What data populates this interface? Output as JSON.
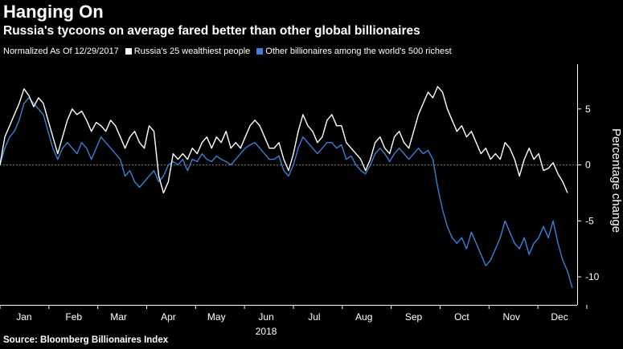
{
  "header": {
    "title": "Hanging On",
    "subtitle": "Russia's tycoons on average fared better than other global billionaires"
  },
  "legend": {
    "note": "Normalized As Of 12/29/2017",
    "items": [
      {
        "label": "Russia's 25 wealthiest people",
        "color": "#ffffff"
      },
      {
        "label": "Other billionaires among the world's 500 richest",
        "color": "#3a7fd9"
      }
    ]
  },
  "footer": {
    "source": "Source: Bloomberg Billionaires Index"
  },
  "chart_data": {
    "type": "line",
    "xlabel": "2018",
    "ylabel": "Percentage change",
    "ylim": [
      -12.5,
      9
    ],
    "yticks": [
      5,
      0,
      -5,
      -10
    ],
    "xlim": [
      0,
      360
    ],
    "month_ticks": [
      {
        "label": "Jan",
        "x": 15
      },
      {
        "label": "Feb",
        "x": 46
      },
      {
        "label": "Mar",
        "x": 74
      },
      {
        "label": "Apr",
        "x": 105
      },
      {
        "label": "May",
        "x": 135
      },
      {
        "label": "Jun",
        "x": 166
      },
      {
        "label": "Jul",
        "x": 196
      },
      {
        "label": "Aug",
        "x": 227
      },
      {
        "label": "Sep",
        "x": 258
      },
      {
        "label": "Oct",
        "x": 288
      },
      {
        "label": "Nov",
        "x": 319
      },
      {
        "label": "Dec",
        "x": 349
      }
    ],
    "grid": false,
    "zero_line": true,
    "series": [
      {
        "name": "Russia's 25 wealthiest people",
        "color": "#ffffff",
        "points": [
          [
            0,
            0
          ],
          [
            3,
            2.5
          ],
          [
            6,
            3.5
          ],
          [
            9,
            4.5
          ],
          [
            12,
            5.5
          ],
          [
            15,
            6.8
          ],
          [
            18,
            6.2
          ],
          [
            21,
            5.2
          ],
          [
            24,
            6.0
          ],
          [
            27,
            5.5
          ],
          [
            30,
            4.0
          ],
          [
            33,
            2.5
          ],
          [
            36,
            1.0
          ],
          [
            39,
            2.5
          ],
          [
            42,
            4.0
          ],
          [
            45,
            5.0
          ],
          [
            48,
            4.5
          ],
          [
            51,
            4.8
          ],
          [
            54,
            4.0
          ],
          [
            57,
            3.0
          ],
          [
            60,
            3.8
          ],
          [
            63,
            3.5
          ],
          [
            66,
            3.0
          ],
          [
            69,
            4.0
          ],
          [
            72,
            3.5
          ],
          [
            75,
            2.5
          ],
          [
            78,
            1.5
          ],
          [
            81,
            2.5
          ],
          [
            84,
            3.0
          ],
          [
            87,
            2.0
          ],
          [
            90,
            1.5
          ],
          [
            93,
            3.5
          ],
          [
            96,
            3.0
          ],
          [
            99,
            -1.0
          ],
          [
            102,
            -2.5
          ],
          [
            105,
            -1.5
          ],
          [
            108,
            1.0
          ],
          [
            111,
            0.5
          ],
          [
            114,
            1.0
          ],
          [
            117,
            0.5
          ],
          [
            120,
            1.5
          ],
          [
            123,
            1.0
          ],
          [
            126,
            2.0
          ],
          [
            129,
            2.5
          ],
          [
            132,
            1.5
          ],
          [
            135,
            2.5
          ],
          [
            138,
            2.0
          ],
          [
            141,
            3.0
          ],
          [
            144,
            1.5
          ],
          [
            147,
            2.0
          ],
          [
            150,
            1.5
          ],
          [
            153,
            2.5
          ],
          [
            156,
            3.5
          ],
          [
            159,
            4.0
          ],
          [
            162,
            3.5
          ],
          [
            165,
            2.5
          ],
          [
            168,
            1.5
          ],
          [
            171,
            1.5
          ],
          [
            174,
            2.0
          ],
          [
            177,
            0.5
          ],
          [
            180,
            -0.5
          ],
          [
            183,
            1.0
          ],
          [
            186,
            3.0
          ],
          [
            189,
            4.5
          ],
          [
            192,
            3.5
          ],
          [
            195,
            3.0
          ],
          [
            198,
            2.0
          ],
          [
            201,
            2.5
          ],
          [
            204,
            4.0
          ],
          [
            207,
            4.5
          ],
          [
            210,
            3.5
          ],
          [
            213,
            3.5
          ],
          [
            216,
            2.0
          ],
          [
            219,
            1.5
          ],
          [
            222,
            1.0
          ],
          [
            225,
            0.5
          ],
          [
            228,
            -0.5
          ],
          [
            231,
            0.5
          ],
          [
            234,
            2.0
          ],
          [
            237,
            2.5
          ],
          [
            240,
            1.5
          ],
          [
            243,
            1.0
          ],
          [
            246,
            2.5
          ],
          [
            249,
            3.0
          ],
          [
            252,
            2.0
          ],
          [
            255,
            1.5
          ],
          [
            258,
            3.0
          ],
          [
            261,
            4.5
          ],
          [
            264,
            5.5
          ],
          [
            267,
            6.5
          ],
          [
            270,
            6.0
          ],
          [
            273,
            7.0
          ],
          [
            276,
            6.5
          ],
          [
            279,
            5.0
          ],
          [
            282,
            4.0
          ],
          [
            285,
            3.0
          ],
          [
            288,
            3.5
          ],
          [
            291,
            2.5
          ],
          [
            294,
            3.0
          ],
          [
            297,
            2.0
          ],
          [
            300,
            1.0
          ],
          [
            303,
            1.5
          ],
          [
            306,
            0.5
          ],
          [
            309,
            1.0
          ],
          [
            312,
            0.5
          ],
          [
            315,
            2.0
          ],
          [
            318,
            1.5
          ],
          [
            321,
            0.5
          ],
          [
            324,
            -1.0
          ],
          [
            327,
            0.5
          ],
          [
            330,
            1.5
          ],
          [
            333,
            0.5
          ],
          [
            336,
            1.0
          ],
          [
            339,
            -0.5
          ],
          [
            342,
            -0.3
          ],
          [
            345,
            0.2
          ],
          [
            348,
            -0.8
          ],
          [
            351,
            -1.5
          ],
          [
            354,
            -2.5
          ]
        ]
      },
      {
        "name": "Other billionaires among the world's 500 richest",
        "color": "#3a7fd9",
        "points": [
          [
            0,
            0
          ],
          [
            3,
            1.5
          ],
          [
            6,
            2.5
          ],
          [
            9,
            3.0
          ],
          [
            12,
            4.0
          ],
          [
            15,
            5.5
          ],
          [
            18,
            6.0
          ],
          [
            21,
            5.5
          ],
          [
            24,
            5.0
          ],
          [
            27,
            4.5
          ],
          [
            30,
            3.0
          ],
          [
            33,
            1.5
          ],
          [
            36,
            0.5
          ],
          [
            39,
            1.5
          ],
          [
            42,
            2.0
          ],
          [
            45,
            1.5
          ],
          [
            48,
            1.0
          ],
          [
            51,
            2.0
          ],
          [
            54,
            1.5
          ],
          [
            57,
            0.5
          ],
          [
            60,
            1.5
          ],
          [
            63,
            2.5
          ],
          [
            66,
            2.0
          ],
          [
            69,
            1.5
          ],
          [
            72,
            1.0
          ],
          [
            75,
            0.5
          ],
          [
            78,
            -1.0
          ],
          [
            81,
            -0.5
          ],
          [
            84,
            -1.5
          ],
          [
            87,
            -2.0
          ],
          [
            90,
            -1.5
          ],
          [
            93,
            -1.0
          ],
          [
            96,
            -0.5
          ],
          [
            99,
            -1.5
          ],
          [
            102,
            -1.0
          ],
          [
            105,
            0.0
          ],
          [
            108,
            0.3
          ],
          [
            111,
            0.0
          ],
          [
            114,
            0.5
          ],
          [
            117,
            -0.5
          ],
          [
            120,
            0.5
          ],
          [
            123,
            0.3
          ],
          [
            126,
            1.0
          ],
          [
            129,
            0.5
          ],
          [
            132,
            0.3
          ],
          [
            135,
            0.8
          ],
          [
            138,
            0.5
          ],
          [
            141,
            0.3
          ],
          [
            144,
            0.0
          ],
          [
            147,
            0.5
          ],
          [
            150,
            1.0
          ],
          [
            153,
            1.5
          ],
          [
            156,
            1.8
          ],
          [
            159,
            2.0
          ],
          [
            162,
            1.5
          ],
          [
            165,
            1.0
          ],
          [
            168,
            0.5
          ],
          [
            171,
            0.5
          ],
          [
            174,
            0.8
          ],
          [
            177,
            -0.5
          ],
          [
            180,
            -1.0
          ],
          [
            183,
            0.0
          ],
          [
            186,
            1.5
          ],
          [
            189,
            2.5
          ],
          [
            192,
            2.0
          ],
          [
            195,
            1.5
          ],
          [
            198,
            1.0
          ],
          [
            201,
            1.5
          ],
          [
            204,
            2.0
          ],
          [
            207,
            2.0
          ],
          [
            210,
            1.5
          ],
          [
            213,
            1.8
          ],
          [
            216,
            0.5
          ],
          [
            219,
            0.8
          ],
          [
            222,
            0.0
          ],
          [
            225,
            -0.5
          ],
          [
            228,
            -0.8
          ],
          [
            231,
            0.0
          ],
          [
            234,
            1.0
          ],
          [
            237,
            1.5
          ],
          [
            240,
            1.0
          ],
          [
            243,
            0.3
          ],
          [
            246,
            1.0
          ],
          [
            249,
            1.5
          ],
          [
            252,
            1.0
          ],
          [
            255,
            0.5
          ],
          [
            258,
            1.0
          ],
          [
            261,
            1.5
          ],
          [
            264,
            1.0
          ],
          [
            267,
            1.3
          ],
          [
            270,
            0.5
          ],
          [
            273,
            -2.0
          ],
          [
            276,
            -4.0
          ],
          [
            279,
            -5.5
          ],
          [
            282,
            -6.5
          ],
          [
            285,
            -7.0
          ],
          [
            288,
            -6.5
          ],
          [
            291,
            -7.5
          ],
          [
            294,
            -6.0
          ],
          [
            297,
            -7.0
          ],
          [
            300,
            -8.0
          ],
          [
            303,
            -9.0
          ],
          [
            306,
            -8.5
          ],
          [
            309,
            -7.5
          ],
          [
            312,
            -6.5
          ],
          [
            315,
            -5.0
          ],
          [
            318,
            -6.0
          ],
          [
            321,
            -7.0
          ],
          [
            324,
            -7.5
          ],
          [
            327,
            -6.5
          ],
          [
            330,
            -8.0
          ],
          [
            333,
            -7.0
          ],
          [
            336,
            -6.5
          ],
          [
            339,
            -5.5
          ],
          [
            342,
            -6.5
          ],
          [
            345,
            -5.0
          ],
          [
            348,
            -7.0
          ],
          [
            351,
            -8.5
          ],
          [
            354,
            -9.5
          ],
          [
            357,
            -11.0
          ]
        ]
      }
    ]
  }
}
